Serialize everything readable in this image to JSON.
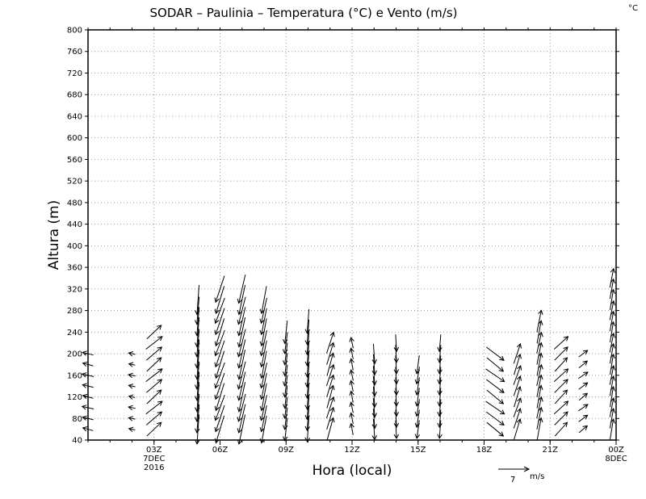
{
  "chart_data": {
    "type": "vector",
    "title": "SODAR  –  Paulinia  –  Temperatura (°C) e Vento (m/s)",
    "corner_unit": "°C",
    "xlabel": "Hora (local)",
    "ylabel": "Altura (m)",
    "ylim": [
      40,
      800
    ],
    "y_ticks": [
      40,
      80,
      120,
      160,
      200,
      240,
      280,
      320,
      360,
      400,
      440,
      480,
      520,
      560,
      600,
      640,
      680,
      720,
      760,
      800
    ],
    "xlim": [
      0,
      24
    ],
    "x_ticks": [
      {
        "hour": 3,
        "label": "03Z",
        "date_line1": "7DEC",
        "date_line2": "2016"
      },
      {
        "hour": 6,
        "label": "06Z"
      },
      {
        "hour": 9,
        "label": "09Z"
      },
      {
        "hour": 12,
        "label": "12Z"
      },
      {
        "hour": 15,
        "label": "15Z"
      },
      {
        "hour": 18,
        "label": "18Z"
      },
      {
        "hour": 21,
        "label": "21Z"
      },
      {
        "hour": 24,
        "label": "00Z",
        "date_line1": "8DEC"
      }
    ],
    "grid": "dotted",
    "reference_vector": {
      "value": "7",
      "unit": "m/s"
    },
    "vector_columns": [
      {
        "hour": 0.0,
        "u": -2.5,
        "v": 0.6,
        "levels": [
          60,
          80,
          100,
          120,
          140,
          160,
          180,
          200
        ]
      },
      {
        "hour": 2.0,
        "u": -1.5,
        "v": 0.3,
        "levels": [
          60,
          80,
          100,
          120,
          140,
          160,
          180,
          200
        ]
      },
      {
        "hour": 3.0,
        "u": 3.5,
        "v": 3.0,
        "levels": [
          60,
          80,
          100,
          120,
          140,
          160,
          180,
          200,
          220,
          240
        ]
      },
      {
        "hour": 5.0,
        "u": -0.5,
        "v": -6.5,
        "levels": [
          60,
          80,
          100,
          120,
          140,
          160,
          180,
          200,
          220,
          240,
          260,
          280,
          300
        ]
      },
      {
        "hour": 6.0,
        "u": -2.0,
        "v": -6.0,
        "levels": [
          60,
          80,
          100,
          120,
          140,
          160,
          180,
          200,
          220,
          240,
          260,
          280,
          300,
          320
        ]
      },
      {
        "hour": 7.0,
        "u": -1.5,
        "v": -6.5,
        "levels": [
          60,
          80,
          100,
          120,
          140,
          160,
          180,
          200,
          220,
          240,
          260,
          280,
          300,
          320
        ]
      },
      {
        "hour": 8.0,
        "u": -1.2,
        "v": -6.0,
        "levels": [
          60,
          80,
          100,
          120,
          140,
          160,
          180,
          200,
          220,
          240,
          260,
          280,
          300
        ]
      },
      {
        "hour": 9.0,
        "u": -0.6,
        "v": -5.0,
        "levels": [
          60,
          80,
          100,
          120,
          140,
          160,
          180,
          200,
          220,
          240
        ]
      },
      {
        "hour": 10.0,
        "u": -0.4,
        "v": -5.5,
        "levels": [
          60,
          80,
          100,
          120,
          140,
          160,
          180,
          200,
          220,
          240,
          260
        ]
      },
      {
        "hour": 11.0,
        "u": 1.5,
        "v": 5.0,
        "levels": [
          60,
          80,
          100,
          120,
          140,
          160,
          180,
          200,
          220
        ]
      },
      {
        "hour": 12.0,
        "u": -0.5,
        "v": 2.5,
        "levels": [
          60,
          80,
          100,
          120,
          140,
          160,
          180,
          200,
          220
        ]
      },
      {
        "hour": 13.0,
        "u": 0.3,
        "v": -4.5,
        "levels": [
          60,
          80,
          100,
          120,
          140,
          160,
          180,
          200
        ]
      },
      {
        "hour": 14.0,
        "u": 0.2,
        "v": -4.0,
        "levels": [
          60,
          80,
          100,
          120,
          140,
          160,
          180,
          200,
          220
        ]
      },
      {
        "hour": 15.0,
        "u": -0.6,
        "v": -4.0,
        "levels": [
          60,
          80,
          100,
          120,
          140,
          160,
          180
        ]
      },
      {
        "hour": 16.0,
        "u": -0.3,
        "v": -4.0,
        "levels": [
          60,
          80,
          100,
          120,
          140,
          160,
          180,
          200,
          220
        ]
      },
      {
        "hour": 18.5,
        "u": 4.0,
        "v": -3.0,
        "levels": [
          60,
          80,
          100,
          120,
          140,
          160,
          180,
          200
        ]
      },
      {
        "hour": 19.5,
        "u": 1.5,
        "v": 4.5,
        "levels": [
          60,
          80,
          100,
          120,
          140,
          160,
          180,
          200
        ]
      },
      {
        "hour": 20.5,
        "u": 1.0,
        "v": 5.0,
        "levels": [
          60,
          80,
          100,
          120,
          140,
          160,
          180,
          200,
          220,
          240,
          260
        ]
      },
      {
        "hour": 21.5,
        "u": 3.0,
        "v": 3.0,
        "levels": [
          60,
          80,
          100,
          120,
          140,
          160,
          180,
          200,
          220
        ]
      },
      {
        "hour": 22.5,
        "u": 2.0,
        "v": 1.5,
        "levels": [
          60,
          80,
          100,
          120,
          140,
          160,
          180,
          200
        ]
      },
      {
        "hour": 23.8,
        "u": 0.8,
        "v": 4.5,
        "levels": [
          60,
          80,
          100,
          120,
          140,
          160,
          180,
          200,
          220,
          240,
          260,
          280,
          300,
          320,
          340
        ]
      }
    ]
  }
}
